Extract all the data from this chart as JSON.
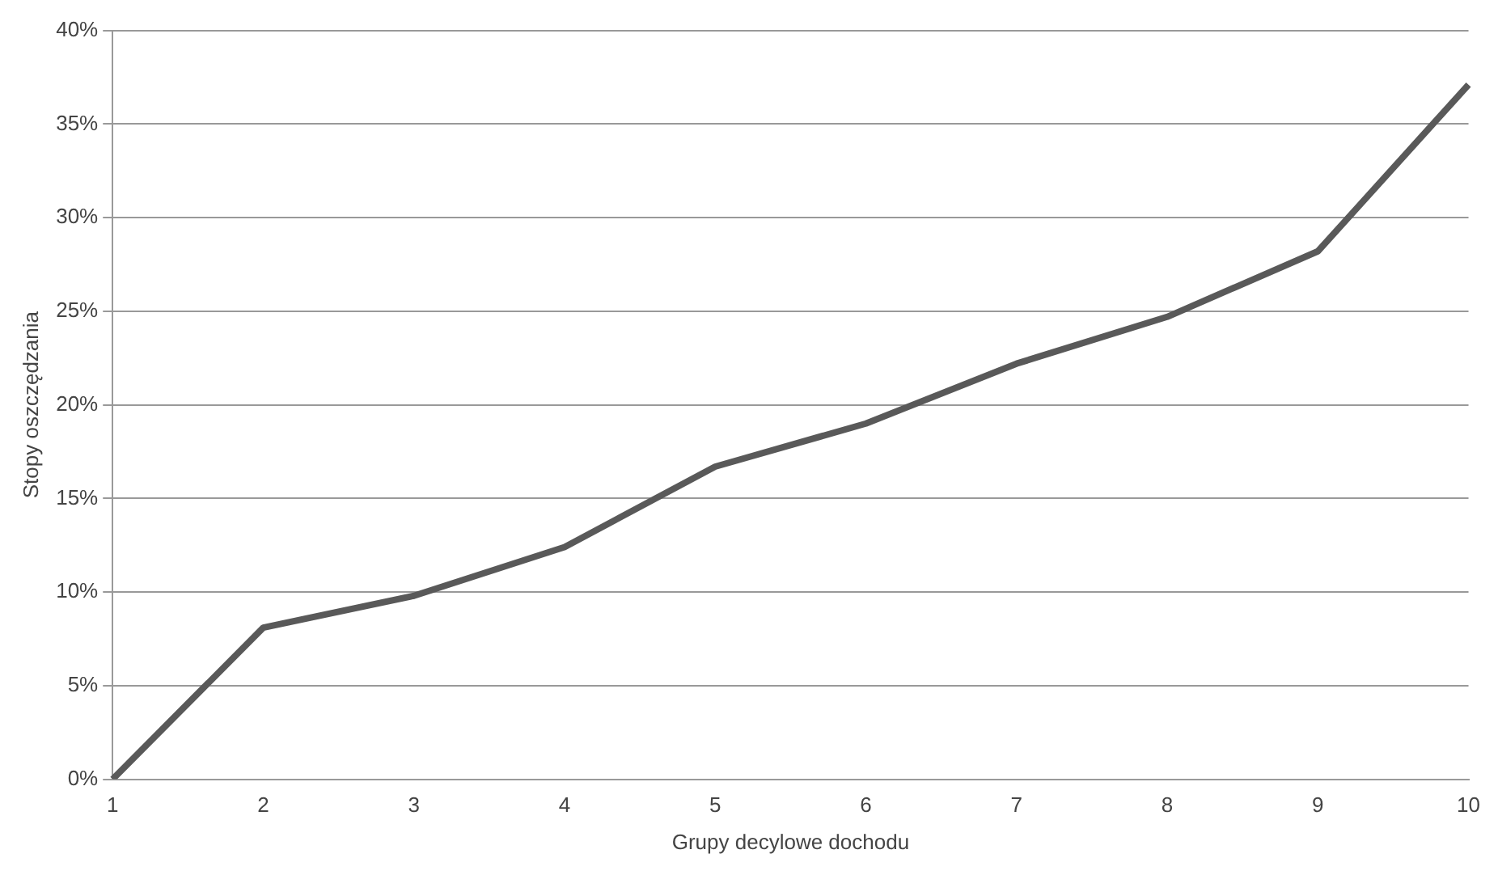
{
  "chart_data": {
    "type": "line",
    "xlabel": "Grupy decylowe dochodu",
    "ylabel": "Stopy oszczędzania",
    "categories": [
      "1",
      "2",
      "3",
      "4",
      "5",
      "6",
      "7",
      "8",
      "9",
      "10"
    ],
    "series": [
      {
        "color": "#595959",
        "values": [
          0,
          8.1,
          9.8,
          12.4,
          16.7,
          19.0,
          22.2,
          24.7,
          28.2,
          37.1
        ]
      }
    ],
    "ylim": [
      0,
      40
    ],
    "yticks": [
      {
        "value": 0,
        "label": "0%"
      },
      {
        "value": 5,
        "label": "5%"
      },
      {
        "value": 10,
        "label": "10%"
      },
      {
        "value": 15,
        "label": "15%"
      },
      {
        "value": 20,
        "label": "20%"
      },
      {
        "value": 25,
        "label": "25%"
      },
      {
        "value": 30,
        "label": "30%"
      },
      {
        "value": 35,
        "label": "35%"
      },
      {
        "value": 40,
        "label": "40%"
      }
    ],
    "grid": "y",
    "legend": false,
    "marker": "none",
    "line_style": "solid"
  }
}
